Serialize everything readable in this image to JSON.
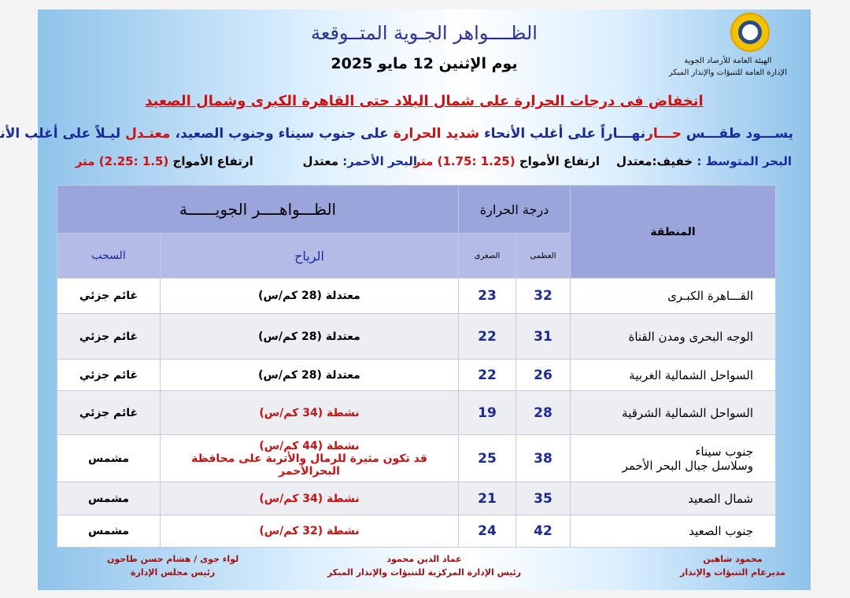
{
  "header": {
    "title": "الظــــواهر الجـوية المتــوقعة",
    "date": "يوم  الإثنين 12 مايو 2025",
    "org_line1": "الهيئة العامة للأرصاد الجوية",
    "org_line2": "الإدارة العامة للتنبؤات والإنذار المبكر"
  },
  "headline": "انخفاض فى درجات الحرارة على شمال البلاد حتى القاهرة الكبرى وشمال الصعيد",
  "summary": {
    "p1": "يســـود طقـــس ",
    "p2": "حـــار",
    "p3": "نهـــاراً على أغلب الأنحاء ",
    "p4": "شديد الحرارة",
    "p5": " على جنوب سيناء وجنوب الصعيد، ",
    "p6": "معتـدل",
    "p7": " ليـلاً على أغلب الأنحـاء."
  },
  "seas": {
    "med_label": "البحر المتوسط :",
    "med_state": " خفيف:معتدل",
    "med_waves_label": "ارتفاع الأمواج ",
    "med_waves": "(1.25 :1.75) متر",
    "red_label": "البحر الأحمر:",
    "red_state": " معتدل",
    "red_waves_label": "ارتفاع الأمواج ",
    "red_waves": "(1.5 :2.25) متر"
  },
  "table": {
    "region_header": "المنطقة",
    "temp_header": "درجة الحرارة",
    "phenomena_header": "الظـــواهــــر الجويــــــة",
    "max_header": "العظمى",
    "min_header": "الصغرى",
    "wind_header": "الرياح",
    "clouds_header": "السحب",
    "rows": [
      {
        "region": "القـــاهرة الكبـرى",
        "max": "32",
        "min": "23",
        "wind": "معتدلة  (28 كم/س)",
        "wind_note": "",
        "active": false,
        "clouds": "غائم جزئي"
      },
      {
        "region": "الوجه البحرى  ومدن القناة",
        "max": "31",
        "min": "22",
        "wind": "معتدلة  (28 كم/س)",
        "wind_note": "",
        "active": false,
        "clouds": "غائم جزئي"
      },
      {
        "region": "السواحل الشمالية الغربية",
        "max": "26",
        "min": "22",
        "wind": "معتدلة  (28 كم/س)",
        "wind_note": "",
        "active": false,
        "clouds": "غائم جزئي"
      },
      {
        "region": "السواحل الشمالية الشرقية",
        "max": "28",
        "min": "19",
        "wind": "نشطة  (34 كم/س)",
        "wind_note": "",
        "active": true,
        "clouds": "غائم جزئي"
      },
      {
        "region": "جنوب سيناء\nوسلاسل جبال البحر الأحمر",
        "max": "38",
        "min": "25",
        "wind": "نشطة (44 كم/س)",
        "wind_note": "قد تكون مثيرة للرمال والأتربة على محافظة البحرالأحمر",
        "active": true,
        "clouds": "مشمس"
      },
      {
        "region": "شمال الصعيد",
        "max": "35",
        "min": "21",
        "wind": "نشطة  (34 كم/س)",
        "wind_note": "",
        "active": true,
        "clouds": "مشمس"
      },
      {
        "region": "جنوب الصعيد",
        "max": "42",
        "min": "24",
        "wind": "نشطة  (32 كم/س)",
        "wind_note": "",
        "active": true,
        "clouds": "مشمس"
      }
    ]
  },
  "signatures": [
    {
      "name": "محمود شاهين",
      "title": "مديرعام التنبؤات والإنذار"
    },
    {
      "name": "عماد الدين محمود",
      "title": "رئيس الإدارة المركزية للتنبؤات والإنذار المبكر"
    },
    {
      "name": "لواء جوى / هشام حسن طاحون",
      "title": "رئيس مجلس الإدارة"
    }
  ],
  "colors": {
    "title": "#2b2f9a",
    "alert": "#d01010",
    "header_bg": "#9aa5dc"
  }
}
